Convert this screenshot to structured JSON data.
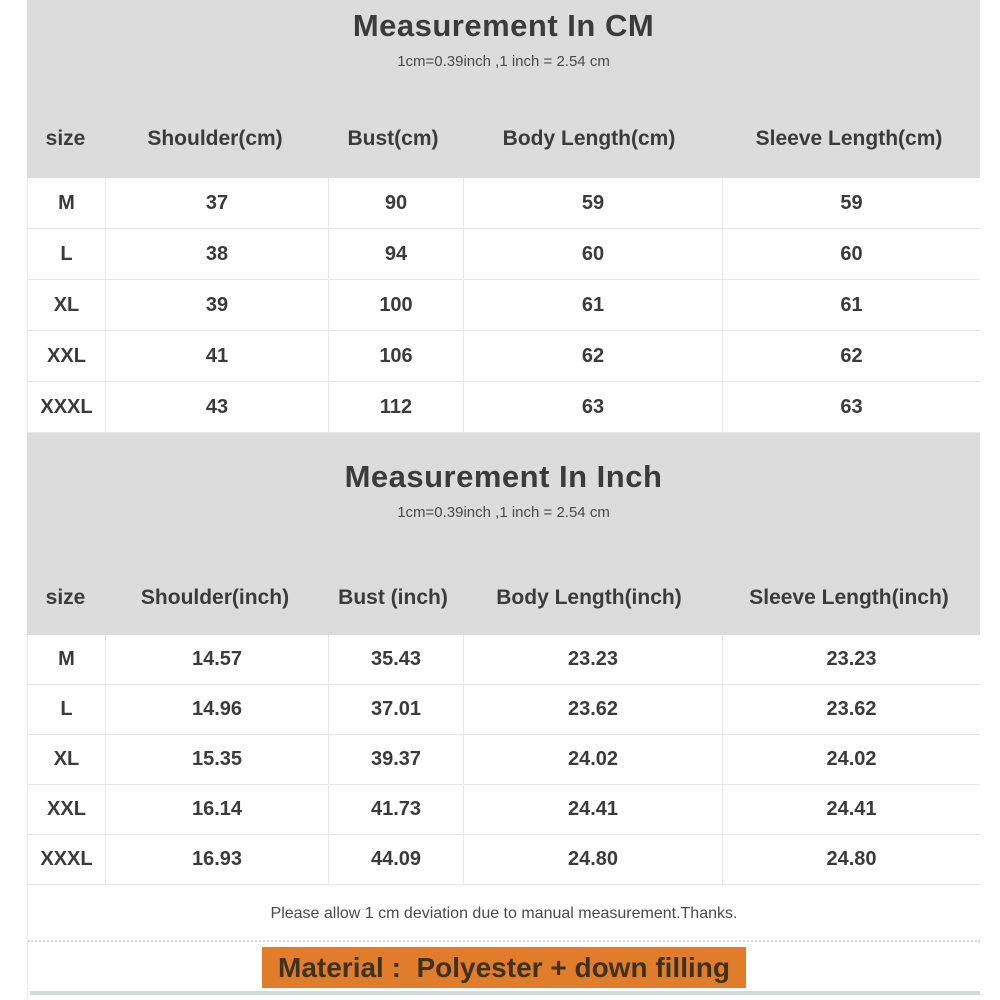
{
  "colors": {
    "band_gray": "#dcdcdc",
    "text_dark": "#3b3b3b",
    "border_light": "#e7e7e7",
    "orange_highlight": "#e17d2a",
    "bottom_line": "#d2d9dd"
  },
  "sections": [
    {
      "title": "Measurement In CM",
      "subtitle": "1cm=0.39inch ,1 inch = 2.54 cm",
      "columns": [
        "size",
        "Shoulder(cm)",
        "Bust(cm)",
        "Body Length(cm)",
        "Sleeve Length(cm)"
      ],
      "rows": [
        [
          "M",
          "37",
          "90",
          "59",
          "59"
        ],
        [
          "L",
          "38",
          "94",
          "60",
          "60"
        ],
        [
          "XL",
          "39",
          "100",
          "61",
          "61"
        ],
        [
          "XXL",
          "41",
          "106",
          "62",
          "62"
        ],
        [
          "XXXL",
          "43",
          "112",
          "63",
          "63"
        ]
      ]
    },
    {
      "title": "Measurement In Inch",
      "subtitle": "1cm=0.39inch ,1 inch = 2.54 cm",
      "columns": [
        "size",
        "Shoulder(inch)",
        "Bust (inch)",
        "Body Length(inch)",
        "Sleeve Length(inch)"
      ],
      "rows": [
        [
          "M",
          "14.57",
          "35.43",
          "23.23",
          "23.23"
        ],
        [
          "L",
          "14.96",
          "37.01",
          "23.62",
          "23.62"
        ],
        [
          "XL",
          "15.35",
          "39.37",
          "24.02",
          "24.02"
        ],
        [
          "XXL",
          "16.14",
          "41.73",
          "24.41",
          "24.41"
        ],
        [
          "XXXL",
          "16.93",
          "44.09",
          "24.80",
          "24.80"
        ]
      ]
    }
  ],
  "footer": {
    "note": "Please allow 1 cm deviation due to manual measurement.Thanks.",
    "material": "Material :  Polyester + down filling"
  }
}
